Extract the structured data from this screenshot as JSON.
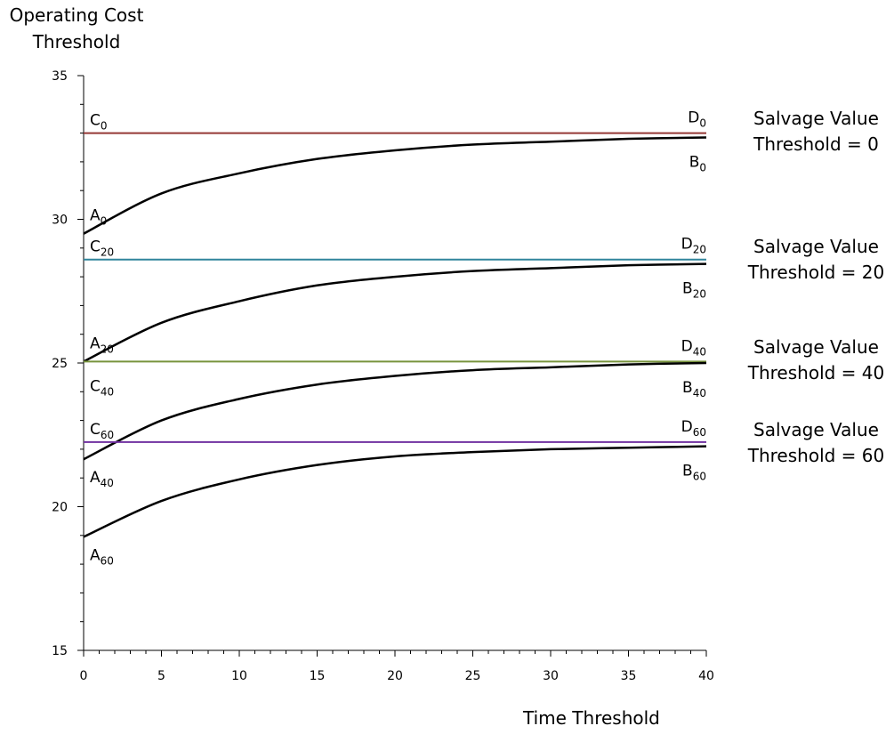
{
  "chart_data": {
    "type": "line",
    "xlabel": "Time Threshold",
    "ylabel_line1": "Operating Cost",
    "ylabel_line2": "Threshold",
    "xlim": [
      0,
      40
    ],
    "ylim": [
      15,
      35
    ],
    "x_ticks": [
      0,
      5,
      10,
      15,
      20,
      25,
      30,
      35,
      40
    ],
    "y_ticks": [
      15,
      20,
      25,
      30,
      35
    ],
    "grid": false,
    "legend": "none",
    "series": [
      {
        "name": "",
        "kind": "constant",
        "color": "#953735",
        "x": [
          0,
          40
        ],
        "values": [
          33.0,
          33.0
        ],
        "start_label": {
          "base": "C",
          "sub": "0"
        },
        "end_label": {
          "base": "D",
          "sub": "0"
        }
      },
      {
        "name": "",
        "kind": "curve",
        "color": "#000000",
        "x": [
          0,
          5,
          10,
          15,
          20,
          25,
          30,
          35,
          40
        ],
        "values": [
          29.5,
          30.9,
          31.6,
          32.1,
          32.4,
          32.6,
          32.7,
          32.8,
          32.85
        ],
        "start_label": {
          "base": "A",
          "sub": "0"
        },
        "end_label": {
          "base": "B",
          "sub": "0"
        }
      },
      {
        "name": "",
        "kind": "constant",
        "color": "#31859C",
        "x": [
          0,
          40
        ],
        "values": [
          28.6,
          28.6
        ],
        "start_label": {
          "base": "C",
          "sub": "20"
        },
        "end_label": {
          "base": "D",
          "sub": "20"
        }
      },
      {
        "name": "",
        "kind": "curve",
        "color": "#000000",
        "x": [
          0,
          5,
          10,
          15,
          20,
          25,
          30,
          35,
          40
        ],
        "values": [
          25.05,
          26.4,
          27.15,
          27.7,
          28.0,
          28.2,
          28.3,
          28.4,
          28.45
        ],
        "start_label": {
          "base": "A",
          "sub": "20"
        },
        "end_label": {
          "base": "B",
          "sub": "20"
        }
      },
      {
        "name": "",
        "kind": "constant",
        "color": "#77933C",
        "x": [
          0,
          40
        ],
        "values": [
          25.05,
          25.05
        ],
        "start_label": {
          "base": "C",
          "sub": "40"
        },
        "end_label": {
          "base": "D",
          "sub": "40"
        }
      },
      {
        "name": "",
        "kind": "curve",
        "color": "#000000",
        "x": [
          0,
          5,
          10,
          15,
          20,
          25,
          30,
          35,
          40
        ],
        "values": [
          21.65,
          23.0,
          23.75,
          24.25,
          24.55,
          24.75,
          24.85,
          24.95,
          25.0
        ],
        "start_label": {
          "base": "A",
          "sub": "40"
        },
        "end_label": {
          "base": "B",
          "sub": "40"
        }
      },
      {
        "name": "",
        "kind": "constant",
        "color": "#7030A0",
        "x": [
          0,
          40
        ],
        "values": [
          22.25,
          22.25
        ],
        "start_label": {
          "base": "C",
          "sub": "60"
        },
        "end_label": {
          "base": "D",
          "sub": "60"
        }
      },
      {
        "name": "",
        "kind": "curve",
        "color": "#000000",
        "x": [
          0,
          5,
          10,
          15,
          20,
          25,
          30,
          35,
          40
        ],
        "values": [
          18.95,
          20.2,
          20.95,
          21.45,
          21.75,
          21.9,
          22.0,
          22.05,
          22.1
        ],
        "start_label": {
          "base": "A",
          "sub": "60"
        },
        "end_label": {
          "base": "B",
          "sub": "60"
        }
      }
    ],
    "annotations": [
      {
        "line1": "Salvage Value",
        "line2": "Threshold = 0"
      },
      {
        "line1": "Salvage Value",
        "line2": "Threshold = 20"
      },
      {
        "line1": "Salvage Value",
        "line2": "Threshold = 40"
      },
      {
        "line1": "Salvage Value",
        "line2": "Threshold = 60"
      }
    ]
  }
}
